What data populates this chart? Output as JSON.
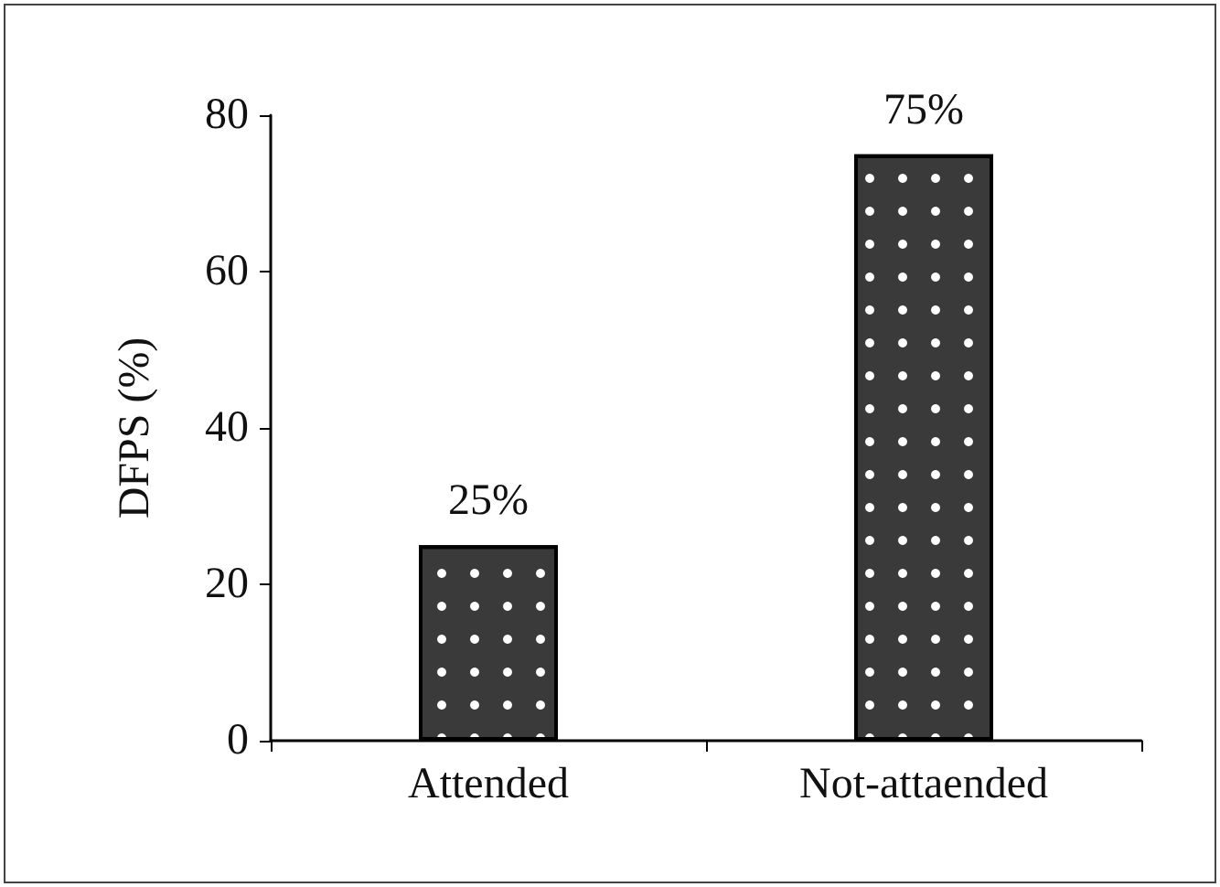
{
  "chart_data": {
    "type": "bar",
    "ylabel": "DFPS (%)",
    "categories": [
      "Attended",
      "Not-attaended"
    ],
    "values": [
      25,
      75
    ],
    "color": "#3a3a3a",
    "value_labels": [
      "25%",
      "75%"
    ],
    "ylim": [
      0,
      80
    ],
    "yticks": [
      0,
      20,
      40,
      60,
      80
    ]
  }
}
